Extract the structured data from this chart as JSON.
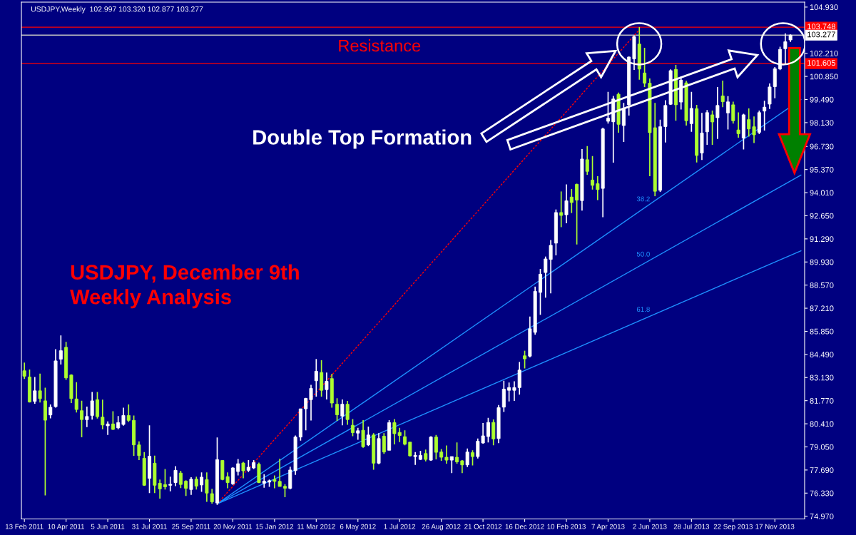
{
  "chart_data": {
    "type": "candlestick",
    "title": "USDJPY,Weekly  102.997 103.320 102.877 103.277",
    "x": [
      "2011-02-13",
      "2011-02-20",
      "2011-02-27",
      "2011-03-06",
      "2011-03-13",
      "2011-03-20",
      "2011-03-27",
      "2011-04-03",
      "2011-04-10",
      "2011-04-17",
      "2011-04-24",
      "2011-05-01",
      "2011-05-08",
      "2011-05-15",
      "2011-05-22",
      "2011-05-29",
      "2011-06-05",
      "2011-06-12",
      "2011-06-19",
      "2011-06-26",
      "2011-07-03",
      "2011-07-10",
      "2011-07-17",
      "2011-07-24",
      "2011-07-31",
      "2011-08-07",
      "2011-08-14",
      "2011-08-21",
      "2011-08-28",
      "2011-09-04",
      "2011-09-11",
      "2011-09-18",
      "2011-09-25",
      "2011-10-02",
      "2011-10-09",
      "2011-10-16",
      "2011-10-23",
      "2011-10-30",
      "2011-11-06",
      "2011-11-13",
      "2011-11-20",
      "2011-11-27",
      "2011-12-04",
      "2011-12-11",
      "2011-12-18",
      "2011-12-25",
      "2012-01-01",
      "2012-01-08",
      "2012-01-15",
      "2012-01-22",
      "2012-01-29",
      "2012-02-05",
      "2012-02-12",
      "2012-02-19",
      "2012-02-26",
      "2012-03-04",
      "2012-03-11",
      "2012-03-18",
      "2012-03-25",
      "2012-04-01",
      "2012-04-08",
      "2012-04-15",
      "2012-04-22",
      "2012-04-29",
      "2012-05-06",
      "2012-05-13",
      "2012-05-20",
      "2012-05-27",
      "2012-06-03",
      "2012-06-10",
      "2012-06-17",
      "2012-06-24",
      "2012-07-01",
      "2012-07-08",
      "2012-07-15",
      "2012-07-22",
      "2012-07-29",
      "2012-08-05",
      "2012-08-12",
      "2012-08-19",
      "2012-08-26",
      "2012-09-02",
      "2012-09-09",
      "2012-09-16",
      "2012-09-23",
      "2012-09-30",
      "2012-10-07",
      "2012-10-14",
      "2012-10-21",
      "2012-10-28",
      "2012-11-04",
      "2012-11-11",
      "2012-11-18",
      "2012-11-25",
      "2012-12-02",
      "2012-12-09",
      "2012-12-16",
      "2012-12-23",
      "2012-12-30",
      "2013-01-06",
      "2013-01-13",
      "2013-01-20",
      "2013-01-27",
      "2013-02-03",
      "2013-02-10",
      "2013-02-17",
      "2013-02-24",
      "2013-03-03",
      "2013-03-10",
      "2013-03-17",
      "2013-03-24",
      "2013-03-31",
      "2013-04-07",
      "2013-04-14",
      "2013-04-21",
      "2013-04-28",
      "2013-05-05",
      "2013-05-12",
      "2013-05-19",
      "2013-05-26",
      "2013-06-02",
      "2013-06-09",
      "2013-06-16",
      "2013-06-23",
      "2013-06-30",
      "2013-07-07",
      "2013-07-14",
      "2013-07-21",
      "2013-07-28",
      "2013-08-04",
      "2013-08-11",
      "2013-08-18",
      "2013-08-25",
      "2013-09-01",
      "2013-09-08",
      "2013-09-15",
      "2013-09-22",
      "2013-09-29",
      "2013-10-06",
      "2013-10-13",
      "2013-10-20",
      "2013-10-27",
      "2013-11-03",
      "2013-11-10",
      "2013-11-17",
      "2013-11-24",
      "2013-12-01",
      "2013-12-08"
    ],
    "ohlc": [
      [
        83.53,
        84.01,
        83.05,
        83.21
      ],
      [
        83.16,
        83.6,
        81.66,
        81.69
      ],
      [
        81.73,
        83.16,
        81.59,
        82.35
      ],
      [
        82.35,
        83.36,
        81.66,
        81.89
      ],
      [
        81.76,
        82.53,
        76.19,
        80.62
      ],
      [
        80.93,
        81.55,
        80.73,
        81.38
      ],
      [
        81.42,
        84.8,
        81.36,
        84.11
      ],
      [
        84.21,
        85.61,
        83.9,
        84.71
      ],
      [
        84.91,
        85.23,
        83.0,
        83.11
      ],
      [
        83.28,
        83.32,
        81.63,
        81.89
      ],
      [
        81.87,
        82.86,
        81.07,
        81.25
      ],
      [
        81.18,
        81.77,
        79.62,
        80.66
      ],
      [
        80.65,
        81.42,
        80.21,
        80.84
      ],
      [
        80.9,
        82.28,
        80.65,
        81.76
      ],
      [
        81.83,
        82.28,
        80.72,
        80.83
      ],
      [
        80.8,
        81.83,
        80.09,
        80.34
      ],
      [
        80.29,
        80.55,
        79.75,
        80.4
      ],
      [
        80.4,
        81.15,
        80.05,
        80.08
      ],
      [
        80.17,
        80.86,
        80.09,
        80.48
      ],
      [
        80.37,
        81.36,
        80.3,
        80.9
      ],
      [
        80.9,
        81.55,
        80.52,
        80.61
      ],
      [
        80.61,
        80.9,
        78.52,
        79.17
      ],
      [
        79.17,
        79.37,
        78.27,
        78.54
      ],
      [
        78.38,
        78.75,
        76.76,
        76.79
      ],
      [
        77.2,
        80.32,
        76.33,
        78.5
      ],
      [
        78.09,
        78.54,
        76.33,
        76.79
      ],
      [
        76.91,
        77.13,
        76.01,
        76.58
      ],
      [
        76.83,
        77.75,
        76.54,
        76.7
      ],
      [
        76.79,
        77.3,
        76.44,
        76.85
      ],
      [
        76.95,
        77.92,
        76.74,
        77.67
      ],
      [
        77.51,
        77.64,
        76.63,
        76.84
      ],
      [
        77.03,
        77.09,
        76.16,
        76.61
      ],
      [
        76.54,
        77.27,
        76.23,
        77.15
      ],
      [
        77.15,
        77.3,
        76.54,
        76.74
      ],
      [
        76.81,
        77.55,
        76.4,
        77.27
      ],
      [
        77.13,
        77.55,
        75.82,
        76.33
      ],
      [
        76.3,
        76.58,
        75.71,
        75.82
      ],
      [
        75.75,
        79.61,
        75.64,
        78.3
      ],
      [
        78.25,
        78.25,
        77.09,
        77.13
      ],
      [
        77.3,
        77.55,
        76.61,
        76.95
      ],
      [
        76.88,
        77.85,
        76.81,
        77.81
      ],
      [
        77.6,
        78.34,
        77.37,
        78.06
      ],
      [
        78.1,
        78.17,
        77.2,
        77.64
      ],
      [
        77.67,
        78.27,
        77.57,
        77.85
      ],
      [
        77.81,
        78.27,
        77.75,
        78.13
      ],
      [
        78.03,
        78.13,
        76.92,
        76.95
      ],
      [
        76.91,
        77.44,
        76.65,
        77.03
      ],
      [
        76.98,
        77.13,
        76.7,
        77.06
      ],
      [
        77.13,
        77.37,
        76.61,
        77.02
      ],
      [
        77.02,
        78.36,
        76.72,
        76.72
      ],
      [
        76.73,
        76.86,
        76.09,
        76.62
      ],
      [
        76.61,
        77.88,
        76.55,
        77.69
      ],
      [
        77.65,
        79.72,
        77.4,
        79.63
      ],
      [
        79.63,
        81.29,
        79.42,
        81.29
      ],
      [
        81.29,
        81.94,
        80.03,
        81.9
      ],
      [
        81.83,
        82.7,
        80.6,
        82.49
      ],
      [
        82.94,
        84.22,
        82.01,
        83.5
      ],
      [
        83.43,
        84.15,
        82.01,
        82.38
      ],
      [
        82.42,
        83.43,
        81.84,
        82.91
      ],
      [
        83.07,
        83.35,
        81.36,
        81.63
      ],
      [
        81.56,
        81.91,
        80.58,
        80.94
      ],
      [
        80.86,
        81.84,
        80.32,
        81.56
      ],
      [
        81.56,
        81.76,
        80.35,
        80.66
      ],
      [
        80.32,
        80.69,
        79.68,
        79.89
      ],
      [
        79.86,
        80.17,
        79.47,
        80.0
      ],
      [
        80.03,
        80.62,
        79.0,
        79.06
      ],
      [
        79.17,
        80.25,
        79.1,
        79.75
      ],
      [
        79.75,
        79.86,
        77.71,
        78.09
      ],
      [
        78.09,
        79.86,
        78.03,
        79.54
      ],
      [
        79.68,
        79.86,
        78.64,
        78.75
      ],
      [
        78.85,
        80.62,
        78.85,
        80.48
      ],
      [
        80.48,
        80.69,
        79.2,
        79.83
      ],
      [
        79.9,
        80.17,
        79.33,
        79.72
      ],
      [
        79.65,
        80.03,
        79.14,
        79.21
      ],
      [
        79.33,
        79.33,
        78.48,
        78.52
      ],
      [
        78.48,
        78.75,
        77.99,
        78.55
      ],
      [
        78.31,
        78.82,
        78.27,
        78.55
      ],
      [
        78.66,
        78.89,
        78.2,
        78.31
      ],
      [
        78.27,
        79.68,
        78.23,
        79.63
      ],
      [
        79.63,
        79.75,
        78.31,
        78.73
      ],
      [
        78.75,
        78.92,
        78.23,
        78.44
      ],
      [
        78.44,
        79.13,
        78.06,
        78.27
      ],
      [
        78.27,
        78.48,
        77.51,
        78.48
      ],
      [
        78.44,
        79.31,
        78.06,
        78.17
      ],
      [
        78.23,
        78.27,
        77.51,
        77.99
      ],
      [
        77.99,
        78.96,
        77.86,
        78.75
      ],
      [
        78.71,
        78.85,
        77.96,
        78.48
      ],
      [
        78.48,
        79.54,
        78.37,
        79.38
      ],
      [
        79.28,
        80.46,
        79.24,
        79.7
      ],
      [
        79.66,
        80.76,
        79.31,
        80.49
      ],
      [
        80.49,
        80.67,
        79.14,
        79.52
      ],
      [
        79.54,
        81.52,
        79.27,
        81.36
      ],
      [
        81.39,
        82.94,
        81.11,
        82.45
      ],
      [
        82.38,
        82.84,
        81.73,
        82.54
      ],
      [
        82.38,
        82.91,
        81.76,
        82.54
      ],
      [
        82.54,
        84.05,
        82.12,
        83.57
      ],
      [
        84.41,
        84.71,
        83.67,
        84.23
      ],
      [
        84.39,
        86.72,
        84.32,
        86.0
      ],
      [
        85.79,
        88.48,
        85.65,
        88.2
      ],
      [
        88.14,
        89.52,
        86.82,
        89.21
      ],
      [
        89.31,
        90.25,
        87.83,
        90.11
      ],
      [
        90.08,
        91.22,
        88.08,
        90.91
      ],
      [
        91.04,
        93.02,
        90.32,
        92.84
      ],
      [
        92.84,
        94.08,
        91.98,
        92.67
      ],
      [
        92.71,
        94.5,
        92.21,
        93.53
      ],
      [
        93.75,
        94.22,
        92.81,
        93.43
      ],
      [
        94.5,
        94.54,
        90.96,
        93.57
      ],
      [
        93.54,
        96.57,
        92.95,
        95.99
      ],
      [
        95.95,
        96.75,
        95.06,
        95.26
      ],
      [
        94.75,
        96.16,
        94.19,
        94.44
      ],
      [
        94.54,
        94.98,
        93.57,
        94.19
      ],
      [
        94.26,
        97.83,
        92.57,
        97.76
      ],
      [
        98.21,
        99.94,
        98.07,
        98.39
      ],
      [
        98.18,
        99.7,
        95.78,
        99.52
      ],
      [
        99.8,
        99.9,
        97.54,
        98.03
      ],
      [
        97.96,
        99.29,
        96.99,
        98.97
      ],
      [
        99.18,
        102.02,
        98.55,
        101.99
      ],
      [
        101.88,
        103.26,
        101.23,
        103.19
      ],
      [
        102.75,
        103.75,
        100.66,
        101.28
      ],
      [
        101.05,
        102.53,
        100.22,
        100.45
      ],
      [
        100.45,
        100.73,
        94.98,
        97.54
      ],
      [
        97.83,
        99.29,
        93.8,
        94.09
      ],
      [
        94.15,
        98.31,
        94.05,
        97.89
      ],
      [
        97.9,
        99.45,
        96.96,
        99.14
      ],
      [
        99.21,
        101.26,
        99.18,
        101.19
      ],
      [
        101.26,
        101.53,
        98.24,
        99.18
      ],
      [
        99.34,
        100.84,
        98.9,
        100.63
      ],
      [
        100.47,
        100.59,
        97.96,
        98.24
      ],
      [
        98.07,
        99.94,
        97.59,
        98.97
      ],
      [
        98.95,
        99.18,
        95.79,
        96.2
      ],
      [
        96.34,
        98.7,
        95.93,
        97.52
      ],
      [
        97.59,
        98.87,
        96.83,
        98.72
      ],
      [
        98.59,
        98.84,
        96.83,
        98.17
      ],
      [
        98.42,
        100.22,
        97.17,
        99.14
      ],
      [
        99.7,
        100.6,
        99.04,
        99.36
      ],
      [
        98.7,
        99.69,
        97.73,
        99.35
      ],
      [
        99.18,
        99.36,
        98.07,
        98.24
      ],
      [
        97.7,
        98.74,
        97.24,
        97.48
      ],
      [
        97.22,
        98.65,
        96.55,
        98.59
      ],
      [
        98.31,
        98.97,
        97.31,
        97.76
      ],
      [
        97.89,
        98.49,
        96.93,
        97.41
      ],
      [
        97.56,
        98.84,
        97.45,
        98.72
      ],
      [
        98.81,
        99.42,
        97.66,
        99.04
      ],
      [
        99.22,
        100.43,
        98.93,
        100.23
      ],
      [
        100.25,
        101.4,
        99.56,
        101.3
      ],
      [
        101.29,
        102.6,
        101.22,
        102.44
      ],
      [
        102.48,
        103.38,
        101.61,
        102.89
      ],
      [
        102.997,
        103.32,
        102.877,
        103.277
      ]
    ],
    "colors": [
      "#adff2f",
      "#adff2f",
      "#ffffff",
      "#adff2f",
      "#adff2f",
      "#ffffff",
      "#ffffff",
      "#ffffff",
      "#adff2f",
      "#adff2f",
      "#adff2f",
      "#adff2f",
      "#ffffff",
      "#ffffff",
      "#adff2f",
      "#adff2f",
      "#ffffff",
      "#adff2f",
      "#ffffff",
      "#ffffff",
      "#adff2f",
      "#adff2f",
      "#adff2f",
      "#adff2f",
      "#ffffff",
      "#adff2f",
      "#adff2f",
      "#adff2f",
      "#ffffff",
      "#ffffff",
      "#adff2f",
      "#adff2f",
      "#ffffff",
      "#adff2f",
      "#ffffff",
      "#adff2f",
      "#adff2f",
      "#ffffff",
      "#adff2f",
      "#adff2f",
      "#ffffff",
      "#ffffff",
      "#adff2f",
      "#ffffff",
      "#ffffff",
      "#adff2f",
      "#ffffff",
      "#ffffff",
      "#adff2f",
      "#adff2f",
      "#adff2f",
      "#ffffff",
      "#ffffff",
      "#ffffff",
      "#ffffff",
      "#ffffff",
      "#ffffff",
      "#adff2f",
      "#ffffff",
      "#adff2f",
      "#adff2f",
      "#ffffff",
      "#adff2f",
      "#adff2f",
      "#ffffff",
      "#adff2f",
      "#ffffff",
      "#adff2f",
      "#ffffff",
      "#adff2f",
      "#ffffff",
      "#adff2f",
      "#adff2f",
      "#adff2f",
      "#adff2f",
      "#ffffff",
      "#ffffff",
      "#adff2f",
      "#ffffff",
      "#adff2f",
      "#adff2f",
      "#adff2f",
      "#ffffff",
      "#adff2f",
      "#adff2f",
      "#ffffff",
      "#adff2f",
      "#ffffff",
      "#ffffff",
      "#ffffff",
      "#adff2f",
      "#ffffff",
      "#ffffff",
      "#ffffff",
      "#ffffff",
      "#ffffff",
      "#adff2f",
      "#ffffff",
      "#ffffff",
      "#ffffff",
      "#ffffff",
      "#ffffff",
      "#ffffff",
      "#adff2f",
      "#ffffff",
      "#adff2f",
      "#adff2f",
      "#ffffff",
      "#adff2f",
      "#adff2f",
      "#adff2f",
      "#ffffff",
      "#ffffff",
      "#ffffff",
      "#adff2f",
      "#ffffff",
      "#ffffff",
      "#ffffff",
      "#adff2f",
      "#adff2f",
      "#adff2f",
      "#adff2f",
      "#ffffff",
      "#ffffff",
      "#ffffff",
      "#adff2f",
      "#ffffff",
      "#adff2f",
      "#ffffff",
      "#adff2f",
      "#ffffff",
      "#ffffff",
      "#adff2f",
      "#ffffff",
      "#adff2f",
      "#ffffff",
      "#adff2f",
      "#adff2f",
      "#ffffff",
      "#adff2f",
      "#adff2f",
      "#ffffff",
      "#ffffff",
      "#ffffff",
      "#ffffff",
      "#ffffff",
      "#ffffff",
      "#ffffff"
    ],
    "series": [
      {
        "name": "38.2",
        "type": "line",
        "color": "#1e90ff",
        "x": [
          "2011-10-30",
          "2013-12-22"
        ],
        "values": [
          75.7,
          99.49
        ]
      },
      {
        "name": "50.0",
        "type": "line",
        "color": "#1e90ff",
        "x": [
          "2011-10-30",
          "2013-12-22"
        ],
        "values": [
          75.7,
          95.04
        ]
      },
      {
        "name": "61.8",
        "type": "line",
        "color": "#1e90ff",
        "x": [
          "2011-10-30",
          "2013-12-22"
        ],
        "values": [
          75.7,
          90.59
        ]
      },
      {
        "type": "line",
        "color": "#ff0000",
        "line_style": "dashed",
        "x": [
          "2011-10-30",
          "2013-05-19"
        ],
        "values": [
          75.7,
          103.6
        ]
      }
    ],
    "ref_lines": [
      {
        "axis": "y",
        "value": 103.748,
        "label": "103.748",
        "color": "#ff0000"
      },
      {
        "axis": "y",
        "value": 103.277,
        "label": "103.277",
        "color": "#c0c0c0"
      },
      {
        "axis": "y",
        "value": 101.605,
        "label": "101.605",
        "color": "#ff0000"
      }
    ],
    "annotations": [
      "Resistance",
      "Double Top Formation",
      "USDJPY, December 9th\nWeekly Analysis"
    ],
    "xlim": [
      "2011-02-09",
      "2013-12-27"
    ],
    "xticks": [
      {
        "value": "2011-02-13",
        "label": "13 Feb 2011"
      },
      {
        "value": "2011-04-10",
        "label": "10 Apr 2011"
      },
      {
        "value": "2011-06-05",
        "label": "5 Jun 2011"
      },
      {
        "value": "2011-07-31",
        "label": "31 Jul 2011"
      },
      {
        "value": "2011-09-25",
        "label": "25 Sep 2011"
      },
      {
        "value": "2011-11-20",
        "label": "20 Nov 2011"
      },
      {
        "value": "2012-01-15",
        "label": "15 Jan 2012"
      },
      {
        "value": "2012-03-11",
        "label": "11 Mar 2012"
      },
      {
        "value": "2012-05-06",
        "label": "6 May 2012"
      },
      {
        "value": "2012-07-01",
        "label": "1 Jul 2012"
      },
      {
        "value": "2012-08-26",
        "label": "26 Aug 2012"
      },
      {
        "value": "2012-10-21",
        "label": "21 Oct 2012"
      },
      {
        "value": "2012-12-16",
        "label": "16 Dec 2012"
      },
      {
        "value": "2013-02-10",
        "label": "10 Feb 2013"
      },
      {
        "value": "2013-04-07",
        "label": "7 Apr 2013"
      },
      {
        "value": "2013-06-02",
        "label": "2 Jun 2013"
      },
      {
        "value": "2013-07-28",
        "label": "28 Jul 2013"
      },
      {
        "value": "2013-09-22",
        "label": "22 Sep 2013"
      },
      {
        "value": "2013-11-17",
        "label": "17 Nov 2013"
      }
    ],
    "ylim": [
      74.81,
      105.22
    ],
    "yticks": [
      {
        "value": 74.97,
        "label": "74.970"
      },
      {
        "value": 76.33,
        "label": "76.330"
      },
      {
        "value": 77.69,
        "label": "77.690"
      },
      {
        "value": 79.05,
        "label": "79.050"
      },
      {
        "value": 80.41,
        "label": "80.410"
      },
      {
        "value": 81.77,
        "label": "81.770"
      },
      {
        "value": 83.13,
        "label": "83.130"
      },
      {
        "value": 84.49,
        "label": "84.490"
      },
      {
        "value": 85.85,
        "label": "85.850"
      },
      {
        "value": 87.21,
        "label": "87.210"
      },
      {
        "value": 88.57,
        "label": "88.570"
      },
      {
        "value": 89.93,
        "label": "89.930"
      },
      {
        "value": 91.29,
        "label": "91.290"
      },
      {
        "value": 92.65,
        "label": "92.650"
      },
      {
        "value": 94.01,
        "label": "94.010"
      },
      {
        "value": 95.37,
        "label": "95.370"
      },
      {
        "value": 96.73,
        "label": "96.730"
      },
      {
        "value": 98.13,
        "label": "98.130"
      },
      {
        "value": 99.49,
        "label": "99.490"
      },
      {
        "value": 100.85,
        "label": "100.850"
      },
      {
        "value": 102.21,
        "label": "102.210"
      },
      {
        "value": 104.93,
        "label": "104.930"
      }
    ],
    "grid": false,
    "legend": false
  }
}
